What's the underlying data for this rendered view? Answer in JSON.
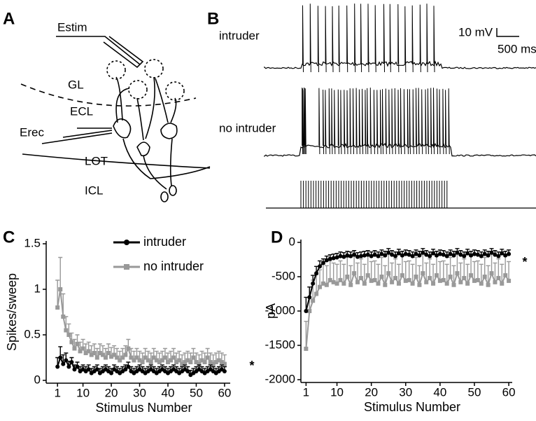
{
  "panel_labels": [
    "A",
    "B",
    "C",
    "D"
  ],
  "diagram": {
    "labels": [
      "Estim",
      "GL",
      "ECL",
      "Erec",
      "LOT",
      "ICL"
    ]
  },
  "traces": {
    "labels": [
      "intruder",
      "no intruder"
    ],
    "scale_bar": [
      "10 mV",
      "500 ms"
    ]
  },
  "chart_data": [
    {
      "type": "line",
      "xlabel": "Stimulus Number",
      "ylabel": "Spikes/sweep",
      "annotation": "*",
      "x": [
        1,
        2,
        3,
        4,
        5,
        6,
        7,
        8,
        9,
        10,
        11,
        12,
        13,
        14,
        15,
        16,
        17,
        18,
        19,
        20,
        21,
        22,
        23,
        24,
        25,
        26,
        27,
        28,
        29,
        30,
        31,
        32,
        33,
        34,
        35,
        36,
        37,
        38,
        39,
        40,
        41,
        42,
        43,
        44,
        45,
        46,
        47,
        48,
        49,
        50,
        51,
        52,
        53,
        54,
        55,
        56,
        57,
        58,
        59,
        60
      ],
      "xlim": [
        -3,
        62
      ],
      "xticks": [
        1,
        10,
        20,
        30,
        40,
        50,
        60
      ],
      "ylim": [
        0,
        1.5
      ],
      "yticks": [
        0,
        0.5,
        1,
        1.5
      ],
      "legend": "top",
      "series": [
        {
          "name": "intruder",
          "color": "#000000",
          "marker": "circle",
          "values": [
            0.15,
            0.25,
            0.18,
            0.22,
            0.15,
            0.2,
            0.12,
            0.15,
            0.1,
            0.12,
            0.1,
            0.12,
            0.08,
            0.1,
            0.12,
            0.08,
            0.1,
            0.12,
            0.1,
            0.08,
            0.12,
            0.1,
            0.08,
            0.1,
            0.12,
            0.15,
            0.1,
            0.08,
            0.1,
            0.12,
            0.1,
            0.08,
            0.1,
            0.12,
            0.1,
            0.08,
            0.1,
            0.12,
            0.1,
            0.08,
            0.1,
            0.12,
            0.1,
            0.08,
            0.1,
            0.12,
            0.1,
            0.06,
            0.08,
            0.1,
            0.12,
            0.1,
            0.08,
            0.1,
            0.12,
            0.1,
            0.08,
            0.1,
            0.12,
            0.1
          ],
          "errors": [
            0.1,
            0.12,
            0.1,
            0.08,
            0.06,
            0.05,
            0.05,
            0.05,
            0.05,
            0.05,
            0.05,
            0.05,
            0.05,
            0.05,
            0.05,
            0.05,
            0.05,
            0.05,
            0.05,
            0.05,
            0.05,
            0.05,
            0.05,
            0.05,
            0.05,
            0.05,
            0.05,
            0.05,
            0.05,
            0.05,
            0.05,
            0.05,
            0.05,
            0.05,
            0.05,
            0.05,
            0.05,
            0.05,
            0.05,
            0.05,
            0.05,
            0.05,
            0.05,
            0.05,
            0.05,
            0.05,
            0.05,
            0.05,
            0.05,
            0.05,
            0.05,
            0.05,
            0.05,
            0.05,
            0.05,
            0.05,
            0.05,
            0.05,
            0.05,
            0.05
          ]
        },
        {
          "name": "no intruder",
          "color": "#999999",
          "marker": "square",
          "values": [
            0.8,
            1.0,
            0.7,
            0.55,
            0.5,
            0.42,
            0.35,
            0.4,
            0.32,
            0.35,
            0.3,
            0.32,
            0.28,
            0.3,
            0.25,
            0.3,
            0.28,
            0.25,
            0.3,
            0.26,
            0.28,
            0.25,
            0.22,
            0.25,
            0.28,
            0.35,
            0.25,
            0.22,
            0.25,
            0.22,
            0.2,
            0.25,
            0.22,
            0.2,
            0.25,
            0.22,
            0.2,
            0.22,
            0.25,
            0.2,
            0.22,
            0.25,
            0.2,
            0.22,
            0.18,
            0.2,
            0.22,
            0.2,
            0.25,
            0.2,
            0.18,
            0.22,
            0.2,
            0.25,
            0.2,
            0.18,
            0.2,
            0.22,
            0.2,
            0.18
          ],
          "errors": [
            0.3,
            0.35,
            0.25,
            0.15,
            0.12,
            0.1,
            0.1,
            0.1,
            0.1,
            0.1,
            0.1,
            0.1,
            0.1,
            0.1,
            0.1,
            0.1,
            0.1,
            0.1,
            0.1,
            0.1,
            0.1,
            0.1,
            0.1,
            0.1,
            0.1,
            0.1,
            0.1,
            0.1,
            0.1,
            0.1,
            0.1,
            0.1,
            0.1,
            0.1,
            0.1,
            0.1,
            0.1,
            0.1,
            0.1,
            0.1,
            0.1,
            0.1,
            0.1,
            0.1,
            0.1,
            0.1,
            0.1,
            0.1,
            0.1,
            0.1,
            0.1,
            0.1,
            0.1,
            0.1,
            0.1,
            0.1,
            0.1,
            0.1,
            0.1,
            0.1
          ]
        }
      ]
    },
    {
      "type": "line",
      "xlabel": "Stimulus Number",
      "ylabel": "pA",
      "annotation": "*",
      "x": [
        1,
        2,
        3,
        4,
        5,
        6,
        7,
        8,
        9,
        10,
        11,
        12,
        13,
        14,
        15,
        16,
        17,
        18,
        19,
        20,
        21,
        22,
        23,
        24,
        25,
        26,
        27,
        28,
        29,
        30,
        31,
        32,
        33,
        34,
        35,
        36,
        37,
        38,
        39,
        40,
        41,
        42,
        43,
        44,
        45,
        46,
        47,
        48,
        49,
        50,
        51,
        52,
        53,
        54,
        55,
        56,
        57,
        58,
        59,
        60
      ],
      "xlim": [
        -0.5,
        61
      ],
      "xticks": [
        1,
        10,
        20,
        30,
        40,
        50,
        60
      ],
      "ylim": [
        -2000,
        0
      ],
      "yticks": [
        -2000,
        -1500,
        -1000,
        -500,
        0
      ],
      "series": [
        {
          "color": "#000000",
          "marker": "circle",
          "values": [
            -1000,
            -800,
            -600,
            -450,
            -350,
            -300,
            -260,
            -240,
            -230,
            -220,
            -200,
            -210,
            -190,
            -200,
            -180,
            -210,
            -200,
            -190,
            -180,
            -200,
            -180,
            -200,
            -170,
            -190,
            -150,
            -180,
            -200,
            -160,
            -190,
            -170,
            -180,
            -200,
            -170,
            -190,
            -150,
            -180,
            -200,
            -160,
            -190,
            -170,
            -180,
            -200,
            -170,
            -190,
            -150,
            -180,
            -200,
            -160,
            -190,
            -170,
            -180,
            -200,
            -170,
            -190,
            -150,
            -180,
            -200,
            -160,
            -190,
            -170
          ],
          "errors": [
            200,
            150,
            120,
            100,
            80,
            60,
            60,
            60,
            60,
            60,
            60,
            60,
            60,
            60,
            60,
            60,
            60,
            60,
            60,
            60,
            60,
            60,
            60,
            60,
            60,
            60,
            60,
            60,
            60,
            60,
            60,
            60,
            60,
            60,
            60,
            60,
            60,
            60,
            60,
            60,
            60,
            60,
            60,
            60,
            60,
            60,
            60,
            60,
            60,
            60,
            60,
            60,
            60,
            60,
            60,
            60,
            60,
            60,
            60,
            60
          ]
        },
        {
          "color": "#999999",
          "marker": "square",
          "values": [
            -1550,
            -1000,
            -850,
            -750,
            -650,
            -600,
            -620,
            -550,
            -580,
            -600,
            -550,
            -600,
            -500,
            -620,
            -450,
            -580,
            -520,
            -600,
            -480,
            -560,
            -550,
            -600,
            -500,
            -620,
            -450,
            -580,
            -520,
            -600,
            -480,
            -560,
            -550,
            -600,
            -500,
            -620,
            -450,
            -580,
            -520,
            -600,
            -480,
            -560,
            -550,
            -600,
            -500,
            -620,
            -450,
            -580,
            -520,
            -600,
            -480,
            -560,
            -550,
            -600,
            -500,
            -620,
            -450,
            -580,
            -520,
            -600,
            -480,
            -560
          ],
          "errors": [
            400,
            350,
            300,
            280,
            250,
            280,
            280,
            280,
            280,
            280,
            280,
            280,
            280,
            280,
            280,
            280,
            280,
            280,
            280,
            280,
            280,
            280,
            280,
            280,
            280,
            280,
            280,
            280,
            280,
            280,
            280,
            280,
            280,
            280,
            280,
            280,
            280,
            280,
            280,
            280,
            280,
            280,
            280,
            280,
            280,
            280,
            280,
            280,
            280,
            280,
            280,
            280,
            280,
            280,
            280,
            280,
            280,
            280,
            280,
            280
          ]
        }
      ]
    }
  ]
}
